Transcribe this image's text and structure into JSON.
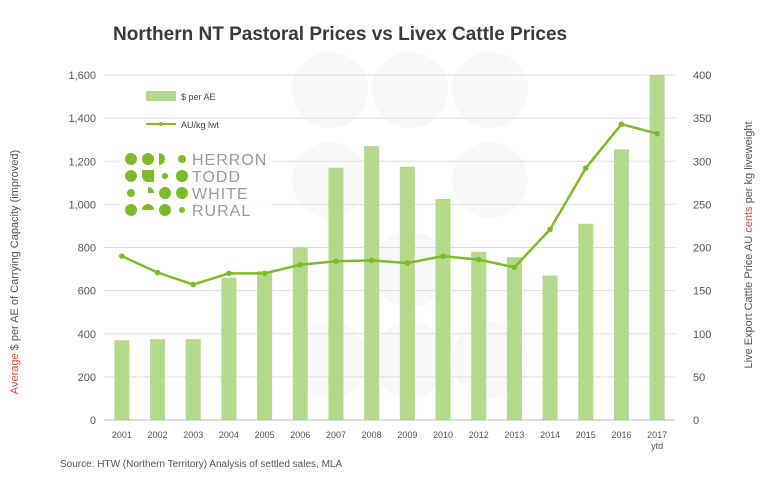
{
  "chart_data": {
    "type": "bar",
    "title": "Northern NT Pastoral  Prices vs Livex Cattle Prices",
    "categories": [
      "2001",
      "2002",
      "2003",
      "2004",
      "2005",
      "2006",
      "2007",
      "2008",
      "2009",
      "2010",
      "2012",
      "2013",
      "2014",
      "2015",
      "2016",
      "2017"
    ],
    "category_sublabels": {
      "2017": "ytd"
    },
    "series": [
      {
        "name": "$ per AE",
        "type": "bar",
        "axis": "left",
        "color": "#b5d98a",
        "values": [
          370,
          375,
          375,
          660,
          690,
          800,
          1170,
          1270,
          1175,
          1025,
          780,
          755,
          670,
          910,
          1255,
          1600
        ]
      },
      {
        "name": "AU/kg lwt",
        "type": "line",
        "axis": "right",
        "color": "#7dbb2c",
        "values": [
          190,
          171,
          157,
          170,
          170,
          180,
          184,
          185,
          182,
          190,
          186,
          177,
          221,
          292,
          343,
          332
        ]
      }
    ],
    "ylim_left": [
      0,
      1600
    ],
    "yticks_left": [
      "0",
      "200",
      "400",
      "600",
      "800",
      "1,000",
      "1,200",
      "1,400",
      "1,600"
    ],
    "ylim_right": [
      0,
      400
    ],
    "yticks_right": [
      "0",
      "50",
      "100",
      "150",
      "200",
      "250",
      "300",
      "350",
      "400"
    ],
    "ylabel_left": {
      "highlight": "Average",
      "rest": " $ per AE of Carrying Capacity (improved)"
    },
    "ylabel_right": {
      "prefix": "Live Export Cattle Price AU ",
      "highlight": "cents",
      "suffix": " per kg liveweight"
    },
    "grid": true,
    "legend_position": "top-left",
    "source": "Source: HTW (Northern Territory) Analysis of settled sales, MLA",
    "logo_lines": [
      "HERRON",
      "TODD",
      "WHITE",
      "RURAL"
    ],
    "colors": {
      "bar": "#b5d98a",
      "line": "#7dbb2c",
      "highlight": "#e8453c"
    }
  }
}
